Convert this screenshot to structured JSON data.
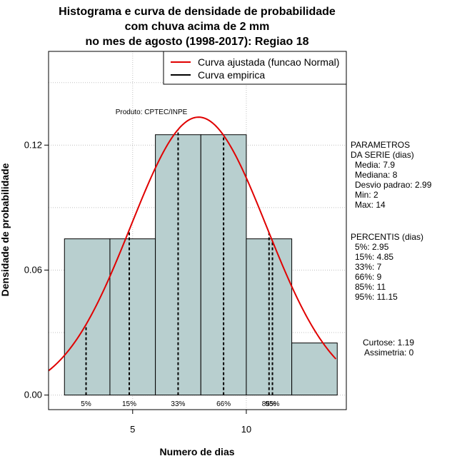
{
  "chart_data": {
    "type": "bar",
    "title_lines": [
      "Histograma e curva de densidade de probabilidade",
      "com chuva acima de 2 mm",
      "no mes de agosto (1998-2017): Regiao 18"
    ],
    "xlabel": "Numero de dias",
    "ylabel": "Densidade de probabilidade",
    "xlim": [
      1.3,
      14.4
    ],
    "ylim": [
      -0.007,
      0.165
    ],
    "x_ticks": [
      5,
      10
    ],
    "y_ticks": [
      0.0,
      0.06,
      0.12
    ],
    "y_tick_labels": [
      "0.00",
      "0.06",
      "0.12"
    ],
    "bins": [
      {
        "x0": 2,
        "x1": 4,
        "density": 0.075
      },
      {
        "x0": 4,
        "x1": 6,
        "density": 0.075
      },
      {
        "x0": 6,
        "x1": 8,
        "density": 0.125
      },
      {
        "x0": 8,
        "x1": 10,
        "density": 0.125
      },
      {
        "x0": 10,
        "x1": 12,
        "density": 0.075
      },
      {
        "x0": 12,
        "x1": 14,
        "density": 0.025
      }
    ],
    "bar_color": "#b8cfcf",
    "curve_color": "#e00000",
    "normal": {
      "mean": 7.9,
      "sd": 2.99
    },
    "percentiles": [
      {
        "label": "5%",
        "value": 2.95
      },
      {
        "label": "15%",
        "value": 4.85
      },
      {
        "label": "33%",
        "value": 7
      },
      {
        "label": "66%",
        "value": 9
      },
      {
        "label": "85%",
        "value": 11
      },
      {
        "label": "95%",
        "value": 11.15
      }
    ],
    "legend": {
      "position": "top-right",
      "entries": [
        {
          "label": "Curva ajustada (funcao Normal)",
          "color": "#e00000"
        },
        {
          "label": "Curva empirica",
          "color": "#000000"
        }
      ]
    },
    "annotation": "Produto: CPTEC/INPE",
    "grid": true
  },
  "side_panel": {
    "params_title_lines": [
      "PARAMETROS",
      "DA SERIE (dias)"
    ],
    "params": [
      "Media: 7.9",
      "Mediana: 8",
      "Desvio padrao: 2.99",
      "Min: 2",
      "Max: 14"
    ],
    "percentis_title": "PERCENTIS (dias)",
    "percentis": [
      "5%: 2.95",
      "15%: 4.85",
      "33%: 7",
      "66%: 9",
      "85%: 11",
      "95%: 11.15"
    ],
    "curtose": "Curtose: 1.19",
    "assimetria": "Assimetria: 0"
  }
}
